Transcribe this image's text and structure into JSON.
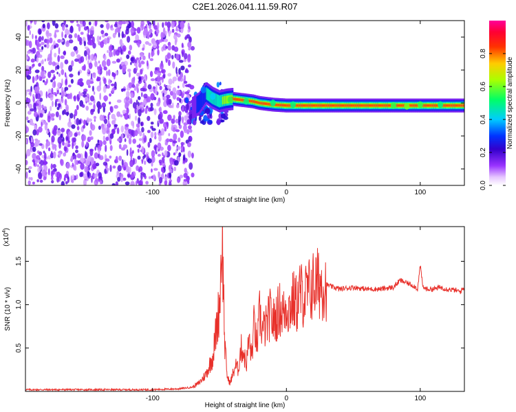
{
  "chart_data": [
    {
      "type": "heatmap",
      "title": "C2E1.2026.041.11.59.R07",
      "xlabel": "Height of straight line (km)",
      "ylabel": "Frequency (Hz)",
      "xlim": [
        -195,
        133
      ],
      "ylim": [
        -50,
        50
      ],
      "xticks": [
        -100,
        0,
        100
      ],
      "xtick_labels": [
        "-100",
        "0",
        "100"
      ],
      "yticks": [
        -40,
        -20,
        0,
        20,
        40
      ],
      "ytick_labels": [
        "-40",
        "-20",
        "0",
        "20",
        "40"
      ],
      "noise_region_x": [
        -195,
        -70
      ],
      "ridge": {
        "x": [
          -70,
          -65,
          -60,
          -55,
          -50,
          -45,
          -40,
          -35,
          -30,
          -25,
          -20,
          -10,
          0,
          10,
          20,
          40,
          60,
          80,
          90,
          100,
          110,
          130
        ],
        "freq": [
          -3,
          0,
          6,
          3,
          1,
          2,
          2.5,
          2,
          1.5,
          1,
          0,
          -1,
          -1.5,
          -1.5,
          -1.5,
          -1.5,
          -1.5,
          -1.5,
          -1.5,
          -1.5,
          -1.5,
          -1.5
        ],
        "amplitude": [
          0.15,
          0.3,
          0.4,
          0.45,
          0.5,
          0.7,
          0.9,
          0.85,
          0.8,
          0.85,
          0.9,
          0.9,
          0.85,
          0.9,
          0.95,
          0.95,
          0.95,
          0.95,
          0.9,
          0.95,
          0.95,
          0.95
        ]
      },
      "colorbar": {
        "label": "Normalized spectral amplitude",
        "ticks": [
          0.0,
          0.2,
          0.4,
          0.6,
          0.8
        ],
        "tick_labels": [
          "0.0",
          "0.2",
          "0.4",
          "0.6",
          "0.8"
        ],
        "range": [
          0,
          1
        ],
        "colors": [
          "#ffffff",
          "#cc66ff",
          "#5500cc",
          "#0000ff",
          "#00ccff",
          "#00ff66",
          "#ccff00",
          "#ffaa00",
          "#ff0000",
          "#ff00aa"
        ]
      }
    },
    {
      "type": "line",
      "xlabel": "Height of straight line (km)",
      "ylabel": "SNR (10 * v/v)",
      "multiplier": "(x10",
      "multiplier_exp": "4",
      "multiplier_close": ")",
      "xlim": [
        -195,
        133
      ],
      "ylim": [
        0,
        1.9
      ],
      "xticks": [
        -100,
        0,
        100
      ],
      "xtick_labels": [
        "-100",
        "0",
        "100"
      ],
      "yticks": [
        0.5,
        1.0,
        1.5
      ],
      "ytick_labels": [
        "0.5",
        "1.0",
        "1.5"
      ],
      "series": [
        {
          "name": "SNR",
          "color": "#e8302a",
          "x": [
            -195,
            -150,
            -100,
            -80,
            -70,
            -65,
            -60,
            -55,
            -50,
            -48,
            -46,
            -44,
            -42,
            -40,
            -38,
            -36,
            -34,
            -32,
            -30,
            -28,
            -26,
            -24,
            -22,
            -20,
            -18,
            -15,
            -12,
            -10,
            -8,
            -5,
            -2,
            0,
            2,
            5,
            8,
            10,
            12,
            15,
            18,
            20,
            25,
            30,
            35,
            40,
            50,
            60,
            70,
            80,
            85,
            90,
            95,
            98,
            100,
            102,
            105,
            110,
            115,
            120,
            125,
            130,
            133
          ],
          "y": [
            0.02,
            0.02,
            0.02,
            0.03,
            0.05,
            0.1,
            0.2,
            0.4,
            1.0,
            1.85,
            0.5,
            0.15,
            0.1,
            0.2,
            0.3,
            0.25,
            0.5,
            0.45,
            0.3,
            0.6,
            0.4,
            0.8,
            0.5,
            0.9,
            0.7,
            0.75,
            0.9,
            0.8,
            0.85,
            0.95,
            0.9,
            1.0,
            0.95,
            1.05,
            1.0,
            1.15,
            1.1,
            1.12,
            1.18,
            1.22,
            1.25,
            1.23,
            1.2,
            1.18,
            1.2,
            1.18,
            1.18,
            1.2,
            1.28,
            1.25,
            1.22,
            1.18,
            1.45,
            1.2,
            1.18,
            1.18,
            1.2,
            1.18,
            1.17,
            1.15,
            1.2
          ]
        }
      ]
    }
  ]
}
